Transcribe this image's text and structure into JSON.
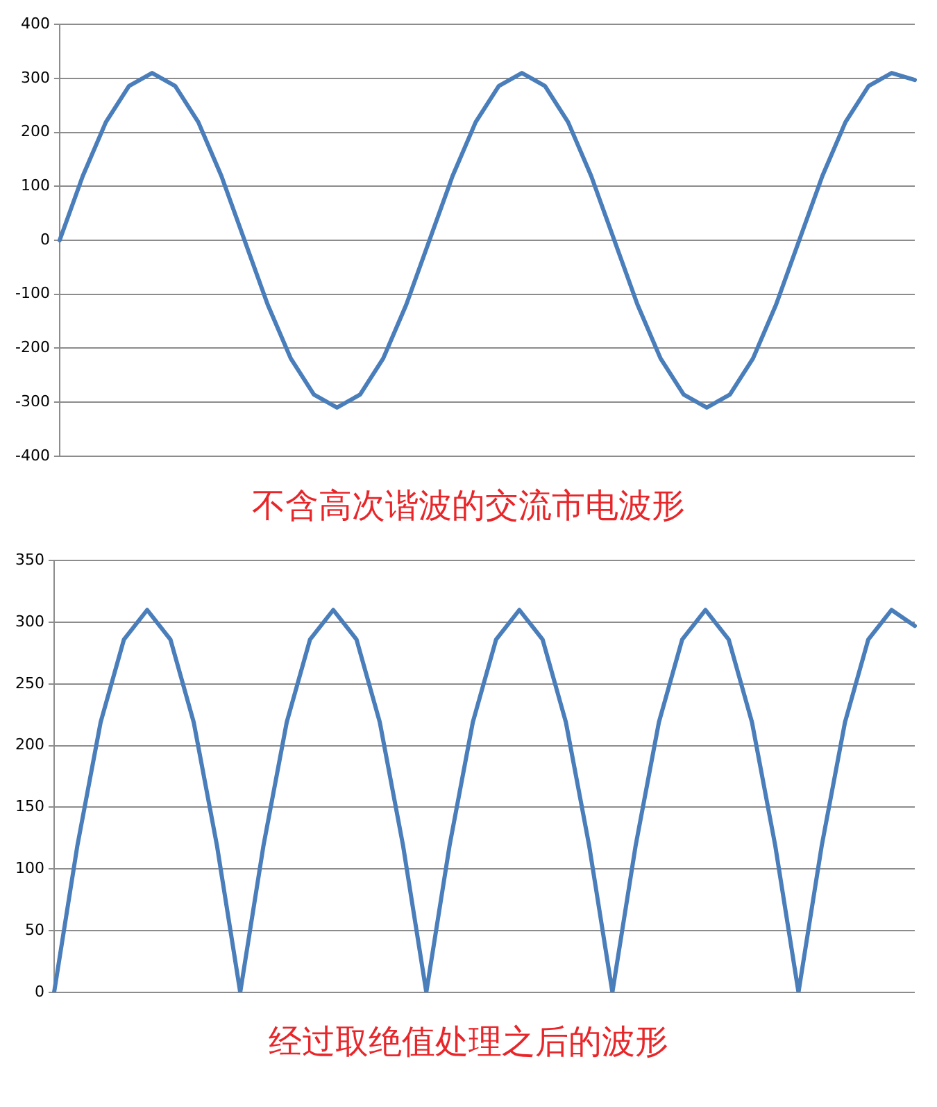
{
  "chart_data": [
    {
      "type": "line",
      "categories": [
        null,
        null,
        null,
        null,
        null,
        null,
        null,
        null,
        null,
        null,
        null,
        null,
        null,
        null,
        null,
        null,
        null,
        null,
        null,
        null,
        null,
        null,
        null,
        null,
        null,
        null,
        null,
        null,
        null,
        null,
        null,
        null,
        null,
        null,
        null,
        null,
        null,
        null
      ],
      "series": [
        {
          "color": "#4a7ebb",
          "values": [
            0,
            119,
            219,
            286,
            310,
            286,
            219,
            119,
            0,
            -119,
            -219,
            -286,
            -310,
            -286,
            -219,
            -119,
            0,
            119,
            219,
            286,
            310,
            286,
            219,
            119,
            0,
            -119,
            -219,
            -286,
            -310,
            -286,
            -219,
            -119,
            0,
            119,
            219,
            286,
            310,
            297
          ]
        }
      ],
      "ylim": [
        -400,
        400
      ],
      "yticks": [
        -400,
        -300,
        -200,
        -100,
        0,
        100,
        200,
        300,
        400
      ],
      "grid": "y",
      "tick_labels": "y",
      "marker": "none",
      "line_style": "solid",
      "legend": false,
      "annotations": [
        "不含高次谐波的交流市电波形"
      ]
    },
    {
      "type": "line",
      "categories": [
        null,
        null,
        null,
        null,
        null,
        null,
        null,
        null,
        null,
        null,
        null,
        null,
        null,
        null,
        null,
        null,
        null,
        null,
        null,
        null,
        null,
        null,
        null,
        null,
        null,
        null,
        null,
        null,
        null,
        null,
        null,
        null,
        null,
        null,
        null,
        null,
        null,
        null
      ],
      "series": [
        {
          "color": "#4a7ebb",
          "values": [
            0,
            119,
            219,
            286,
            310,
            286,
            219,
            119,
            0,
            119,
            219,
            286,
            310,
            286,
            219,
            119,
            0,
            119,
            219,
            286,
            310,
            286,
            219,
            119,
            0,
            119,
            219,
            286,
            310,
            286,
            219,
            119,
            0,
            119,
            219,
            286,
            310,
            297
          ]
        }
      ],
      "ylim": [
        0,
        350
      ],
      "yticks": [
        0,
        50,
        100,
        150,
        200,
        250,
        300,
        350
      ],
      "grid": "y",
      "tick_labels": "y",
      "marker": "none",
      "line_style": "solid",
      "legend": false,
      "annotations": [
        "经过取绝值处理之后的波形"
      ]
    }
  ]
}
